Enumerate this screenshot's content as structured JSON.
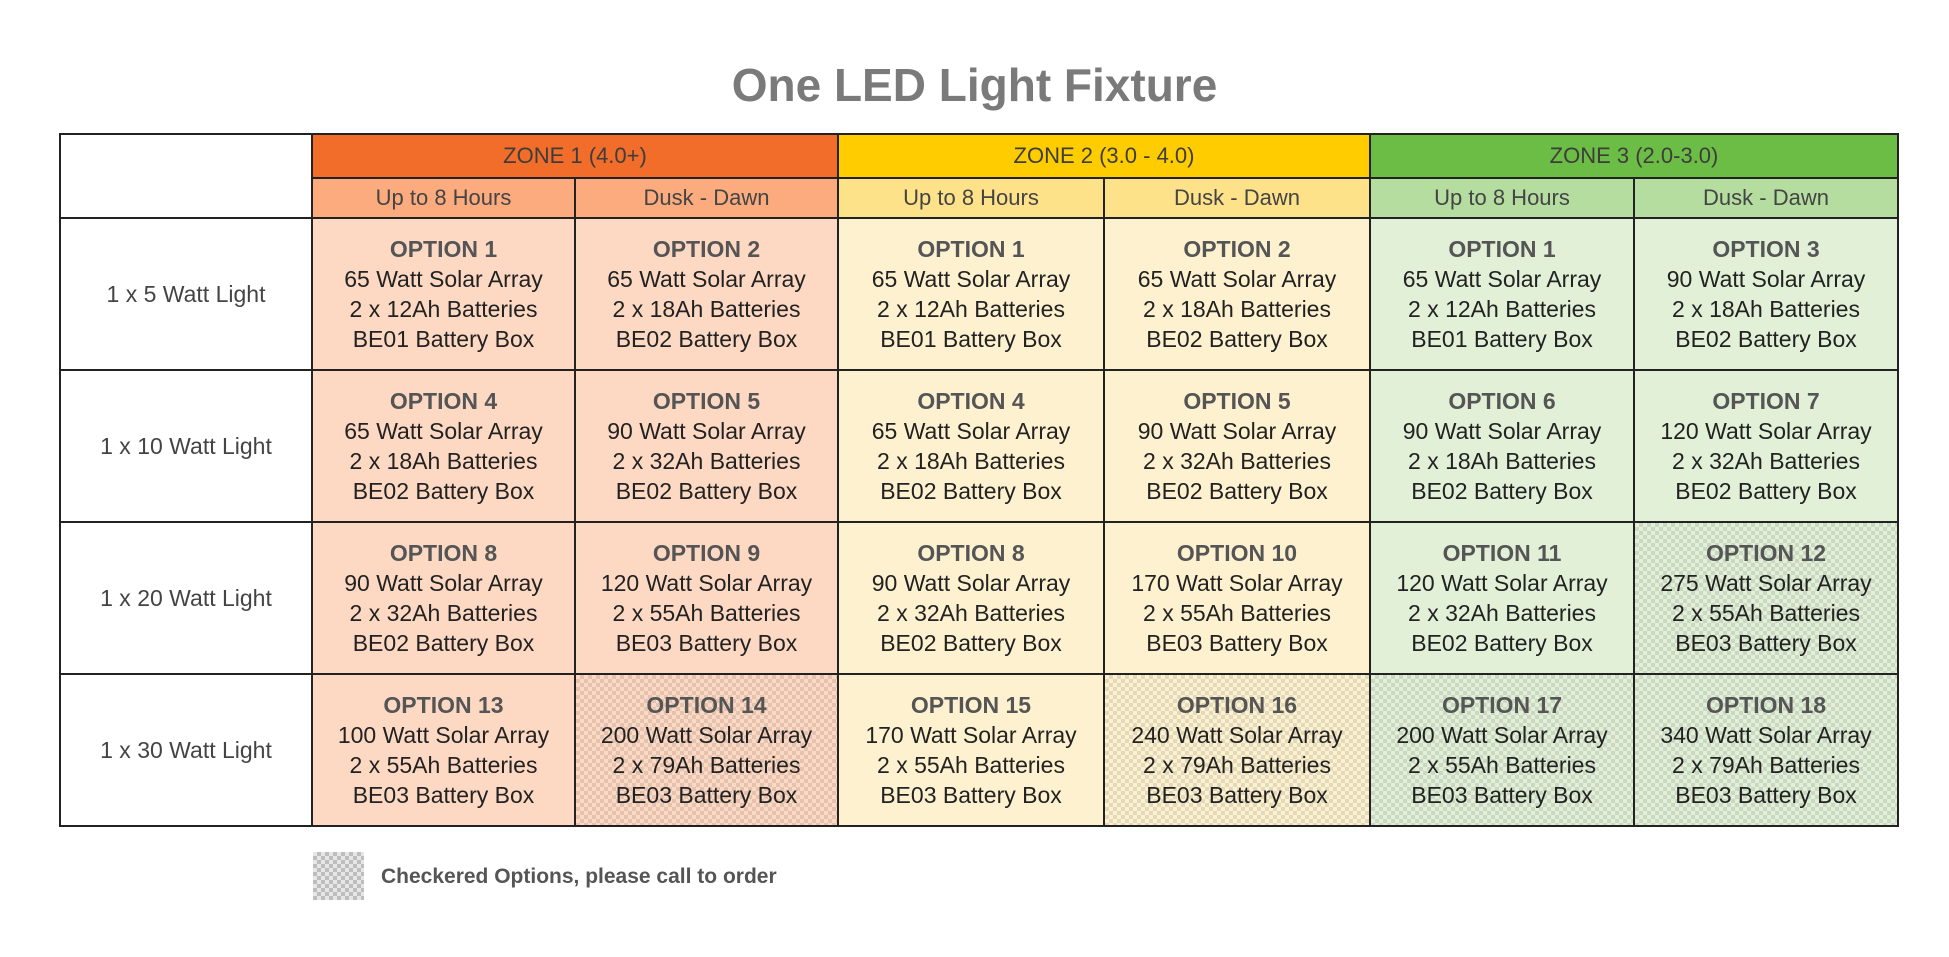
{
  "title": "One LED Light Fixture",
  "zones": [
    {
      "label": "ZONE 1 (4.0+)",
      "color": "#f26c2a",
      "sub_color": "#fbab7e",
      "cell_color": "#fdd9c4"
    },
    {
      "label": "ZONE 2 (3.0 - 4.0)",
      "color": "#ffcc00",
      "sub_color": "#fde28a",
      "cell_color": "#fef1cf"
    },
    {
      "label": "ZONE 3 (2.0-3.0)",
      "color": "#6cbd45",
      "sub_color": "#b5dda0",
      "cell_color": "#e1f0d7"
    }
  ],
  "subheaders": [
    "Up to 8 Hours",
    "Dusk - Dawn",
    "Up to 8 Hours",
    "Dusk - Dawn",
    "Up to 8 Hours",
    "Dusk - Dawn"
  ],
  "rows": [
    {
      "label": "1 x 5 Watt Light",
      "cells": [
        {
          "option": "OPTION 1",
          "array": "65 Watt Solar Array",
          "batteries": "2 x 12Ah Batteries",
          "box": "BE01 Battery Box",
          "checkered": false
        },
        {
          "option": "OPTION 2",
          "array": "65 Watt Solar Array",
          "batteries": "2 x 18Ah Batteries",
          "box": "BE02 Battery Box",
          "checkered": false
        },
        {
          "option": "OPTION 1",
          "array": "65 Watt Solar Array",
          "batteries": "2 x 12Ah Batteries",
          "box": "BE01 Battery Box",
          "checkered": false
        },
        {
          "option": "OPTION 2",
          "array": "65 Watt Solar Array",
          "batteries": "2 x 18Ah Batteries",
          "box": "BE02 Battery Box",
          "checkered": false
        },
        {
          "option": "OPTION 1",
          "array": "65 Watt Solar Array",
          "batteries": "2 x 12Ah Batteries",
          "box": "BE01 Battery Box",
          "checkered": false
        },
        {
          "option": "OPTION 3",
          "array": "90 Watt Solar Array",
          "batteries": "2 x 18Ah Batteries",
          "box": "BE02 Battery Box",
          "checkered": false
        }
      ]
    },
    {
      "label": "1 x 10 Watt Light",
      "cells": [
        {
          "option": "OPTION 4",
          "array": "65 Watt Solar Array",
          "batteries": "2 x 18Ah Batteries",
          "box": "BE02 Battery Box",
          "checkered": false
        },
        {
          "option": "OPTION 5",
          "array": "90 Watt Solar Array",
          "batteries": "2 x 32Ah Batteries",
          "box": "BE02 Battery Box",
          "checkered": false
        },
        {
          "option": "OPTION 4",
          "array": "65 Watt Solar Array",
          "batteries": "2 x 18Ah Batteries",
          "box": "BE02 Battery Box",
          "checkered": false
        },
        {
          "option": "OPTION 5",
          "array": "90 Watt Solar Array",
          "batteries": "2 x 32Ah Batteries",
          "box": "BE02 Battery Box",
          "checkered": false
        },
        {
          "option": "OPTION 6",
          "array": "90 Watt Solar Array",
          "batteries": "2 x 18Ah Batteries",
          "box": "BE02 Battery Box",
          "checkered": false
        },
        {
          "option": "OPTION 7",
          "array": "120 Watt Solar Array",
          "batteries": "2 x 32Ah Batteries",
          "box": "BE02 Battery Box",
          "checkered": false
        }
      ]
    },
    {
      "label": "1 x 20 Watt Light",
      "cells": [
        {
          "option": "OPTION 8",
          "array": "90 Watt Solar Array",
          "batteries": "2 x 32Ah Batteries",
          "box": "BE02 Battery Box",
          "checkered": false
        },
        {
          "option": "OPTION 9",
          "array": "120 Watt Solar Array",
          "batteries": "2 x 55Ah Batteries",
          "box": "BE03 Battery Box",
          "checkered": false
        },
        {
          "option": "OPTION 8",
          "array": "90 Watt Solar Array",
          "batteries": "2 x 32Ah Batteries",
          "box": "BE02 Battery Box",
          "checkered": false
        },
        {
          "option": "OPTION 10",
          "array": "170 Watt Solar Array",
          "batteries": "2 x 55Ah Batteries",
          "box": "BE03 Battery Box",
          "checkered": false
        },
        {
          "option": "OPTION 11",
          "array": "120 Watt Solar Array",
          "batteries": "2 x 32Ah Batteries",
          "box": "BE02 Battery Box",
          "checkered": false
        },
        {
          "option": "OPTION 12",
          "array": "275 Watt Solar Array",
          "batteries": "2 x 55Ah Batteries",
          "box": "BE03 Battery Box",
          "checkered": true
        }
      ]
    },
    {
      "label": "1 x 30 Watt Light",
      "cells": [
        {
          "option": "OPTION 13",
          "array": "100 Watt Solar Array",
          "batteries": "2 x 55Ah Batteries",
          "box": "BE03 Battery Box",
          "checkered": false
        },
        {
          "option": "OPTION 14",
          "array": "200 Watt Solar Array",
          "batteries": "2 x 79Ah Batteries",
          "box": "BE03 Battery Box",
          "checkered": true
        },
        {
          "option": "OPTION 15",
          "array": "170 Watt Solar Array",
          "batteries": "2 x 55Ah Batteries",
          "box": "BE03 Battery Box",
          "checkered": false
        },
        {
          "option": "OPTION 16",
          "array": "240 Watt Solar Array",
          "batteries": "2 x 79Ah Batteries",
          "box": "BE03 Battery Box",
          "checkered": true
        },
        {
          "option": "OPTION 17",
          "array": "200 Watt Solar Array",
          "batteries": "2 x 55Ah Batteries",
          "box": "BE03 Battery Box",
          "checkered": true
        },
        {
          "option": "OPTION 18",
          "array": "340 Watt Solar Array",
          "batteries": "2 x 79Ah Batteries",
          "box": "BE03 Battery Box",
          "checkered": true
        }
      ]
    }
  ],
  "legend": {
    "text": "Checkered Options, please call to order"
  }
}
